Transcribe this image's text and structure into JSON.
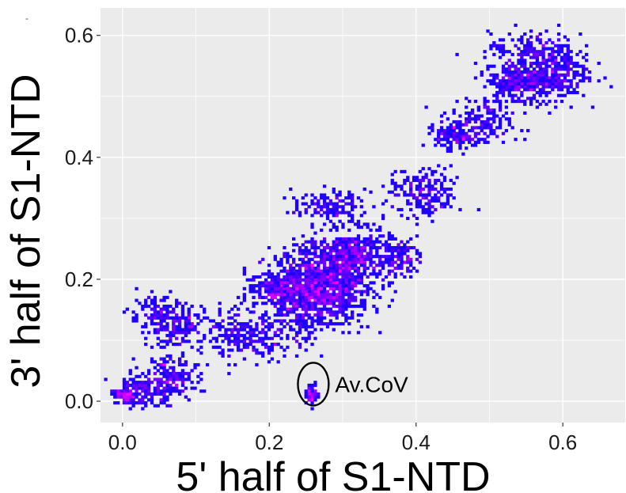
{
  "chart_data": {
    "type": "heatmap",
    "title": "",
    "corner_mark": "-",
    "xlabel": "5' half of S1-NTD",
    "ylabel": "3' half of S1-NTD",
    "xlim": [
      -0.03,
      0.685
    ],
    "ylim": [
      -0.035,
      0.645
    ],
    "x_ticks": [
      0.0,
      0.2,
      0.4,
      0.6
    ],
    "x_tick_labels": [
      "0.0",
      "0.2",
      "0.4",
      "0.6"
    ],
    "y_ticks": [
      0.0,
      0.2,
      0.4,
      0.6
    ],
    "y_tick_labels": [
      "0.0",
      "0.2",
      "0.4",
      "0.6"
    ],
    "grid": true,
    "panel_background": "#ebebeb",
    "grid_color": "#ffffff",
    "low_density_color": "#1f00ff",
    "high_density_color": "#ff00ff",
    "clusters": [
      {
        "x": 0.005,
        "y": 0.008,
        "sx": 0.01,
        "sy": 0.006,
        "density": 0.85
      },
      {
        "x": 0.03,
        "y": 0.02,
        "sx": 0.02,
        "sy": 0.015,
        "density": 0.45
      },
      {
        "x": 0.062,
        "y": 0.038,
        "sx": 0.018,
        "sy": 0.018,
        "density": 0.7
      },
      {
        "x": 0.075,
        "y": 0.12,
        "sx": 0.02,
        "sy": 0.02,
        "density": 0.4
      },
      {
        "x": 0.05,
        "y": 0.14,
        "sx": 0.02,
        "sy": 0.015,
        "density": 0.3
      },
      {
        "x": 0.155,
        "y": 0.11,
        "sx": 0.025,
        "sy": 0.02,
        "density": 0.25
      },
      {
        "x": 0.21,
        "y": 0.185,
        "sx": 0.02,
        "sy": 0.015,
        "density": 0.75
      },
      {
        "x": 0.255,
        "y": 0.185,
        "sx": 0.03,
        "sy": 0.03,
        "density": 0.95
      },
      {
        "x": 0.29,
        "y": 0.215,
        "sx": 0.03,
        "sy": 0.03,
        "density": 1.0
      },
      {
        "x": 0.325,
        "y": 0.245,
        "sx": 0.02,
        "sy": 0.02,
        "density": 0.85
      },
      {
        "x": 0.27,
        "y": 0.16,
        "sx": 0.035,
        "sy": 0.02,
        "density": 0.5
      },
      {
        "x": 0.28,
        "y": 0.32,
        "sx": 0.025,
        "sy": 0.012,
        "density": 0.45
      },
      {
        "x": 0.38,
        "y": 0.235,
        "sx": 0.012,
        "sy": 0.015,
        "density": 0.6
      },
      {
        "x": 0.2,
        "y": 0.11,
        "sx": 0.03,
        "sy": 0.02,
        "density": 0.3
      },
      {
        "x": 0.41,
        "y": 0.34,
        "sx": 0.025,
        "sy": 0.02,
        "density": 0.5
      },
      {
        "x": 0.48,
        "y": 0.45,
        "sx": 0.025,
        "sy": 0.02,
        "density": 0.45
      },
      {
        "x": 0.45,
        "y": 0.435,
        "sx": 0.012,
        "sy": 0.01,
        "density": 0.35
      },
      {
        "x": 0.54,
        "y": 0.525,
        "sx": 0.025,
        "sy": 0.02,
        "density": 0.9
      },
      {
        "x": 0.585,
        "y": 0.54,
        "sx": 0.025,
        "sy": 0.022,
        "density": 0.75
      },
      {
        "x": 0.56,
        "y": 0.58,
        "sx": 0.03,
        "sy": 0.012,
        "density": 0.3
      },
      {
        "x": 0.258,
        "y": 0.012,
        "sx": 0.004,
        "sy": 0.008,
        "density": 0.2
      }
    ],
    "annotations": [
      {
        "text": "Av.CoV",
        "circle_center": [
          0.26,
          0.028
        ],
        "circle_radius_x": 0.021,
        "circle_radius_y": 0.035
      }
    ]
  }
}
